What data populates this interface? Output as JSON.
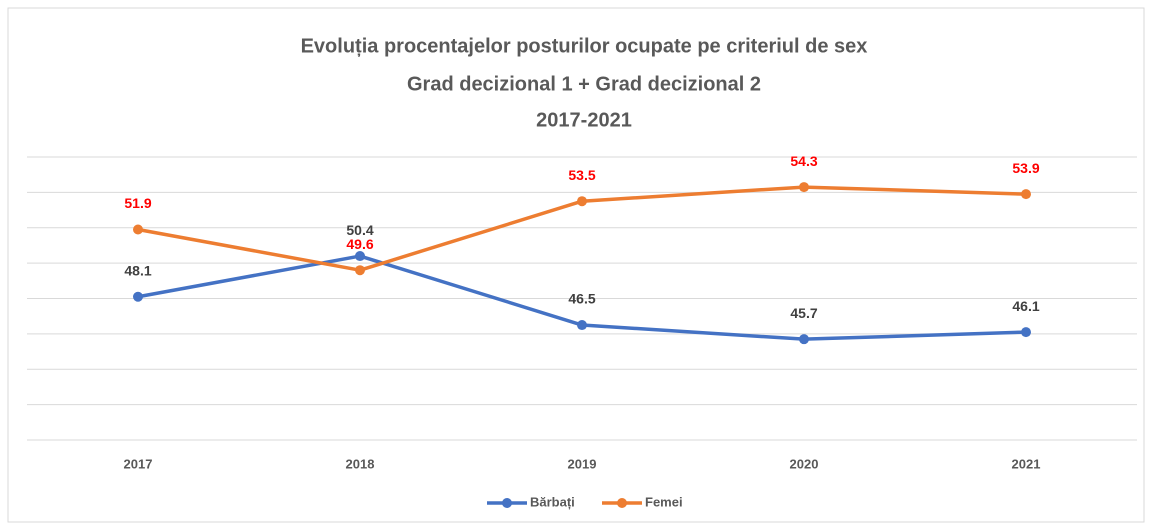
{
  "chart_data": {
    "type": "line",
    "title": [
      "Evoluția procentajelor posturilor ocupate pe criteriul de sex",
      "Grad decizional 1 + Grad decizional 2",
      "2017-2021"
    ],
    "categories": [
      "2017",
      "2018",
      "2019",
      "2020",
      "2021"
    ],
    "series": [
      {
        "name": "Bărbați",
        "color": "#4472c4",
        "label_color": "#404040",
        "values": [
          48.1,
          50.4,
          46.5,
          45.7,
          46.1
        ]
      },
      {
        "name": "Femei",
        "color": "#ed7d31",
        "label_color": "#ff0000",
        "values": [
          51.9,
          49.6,
          53.5,
          54.3,
          53.9
        ]
      }
    ],
    "ylim": [
      40,
      56
    ],
    "yticks": [
      40,
      42,
      44,
      46,
      48,
      50,
      52,
      54,
      56
    ],
    "grid": true,
    "legend": "bottom"
  }
}
